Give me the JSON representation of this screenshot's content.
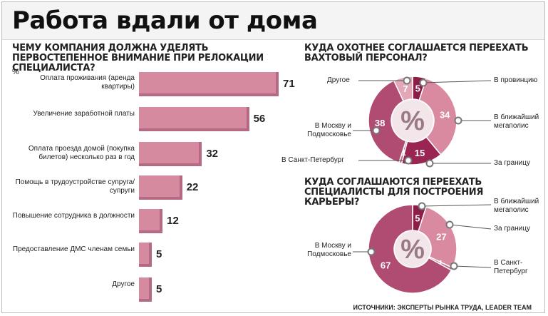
{
  "title": "Работа вдали от дома",
  "source": "ИСТОЧНИКИ: ЭКСПЕРТЫ РЫНКА ТРУДА, LEADER TEAM",
  "chart_data": [
    {
      "type": "bar",
      "title": "ЧЕМУ КОМПАНИЯ ДОЛЖНА УДЕЛЯТЬ ПЕРВОСТЕПЕННОЕ ВНИМАНИЕ ПРИ РЕЛОКАЦИИ СПЕЦИАЛИСТА?",
      "unit": "%",
      "categories": [
        "Оплата проживания (аренда квартиры)",
        "Увеличение заработной платы",
        "Оплата проезда домой (покупка билетов) несколько раз в год",
        "Помощь в трудоустройстве супруга/супруги",
        "Повышение сотрудника в должности",
        "Предоставление ДМС членам семьи",
        "Другое"
      ],
      "values": [
        71,
        56,
        32,
        22,
        12,
        5,
        5
      ]
    },
    {
      "type": "pie",
      "title": "КУДА ОХОТНЕЕ СОГЛАШАЕТСЯ ПЕРЕЕХАТЬ ВАХТОВЫЙ ПЕРСОНАЛ?",
      "center_label": "%",
      "slices": [
        {
          "label": "В провинцию",
          "value": 5,
          "color": "#8c1d47"
        },
        {
          "label": "В ближайший мегаполис",
          "value": 34,
          "color": "#d98aa0"
        },
        {
          "label": "За границу",
          "value": 15,
          "color": "#9a2452"
        },
        {
          "label": "В Санкт-Петербург",
          "value": 1,
          "color": "#c06e88"
        },
        {
          "label": "В Москву и Подмосковье",
          "value": 38,
          "color": "#b04b71"
        },
        {
          "label": "Другое",
          "value": 7,
          "color": "#e3a7b8"
        }
      ]
    },
    {
      "type": "pie",
      "title": "КУДА СОГЛАШАЮТСЯ ПЕРЕЕХАТЬ СПЕЦИАЛИСТЫ ДЛЯ ПОСТРОЕНИЯ КАРЬЕРЫ?",
      "center_label": "%",
      "slices": [
        {
          "label": "В ближайший мегаполис",
          "value": 5,
          "color": "#8c1d47"
        },
        {
          "label": "За границу",
          "value": 27,
          "color": "#d98aa0"
        },
        {
          "label": "В Санкт-Петербург",
          "value": 1,
          "color": "#c06e88"
        },
        {
          "label": "В Москву и Подмосковье",
          "value": 67,
          "color": "#b04b71"
        }
      ]
    }
  ]
}
